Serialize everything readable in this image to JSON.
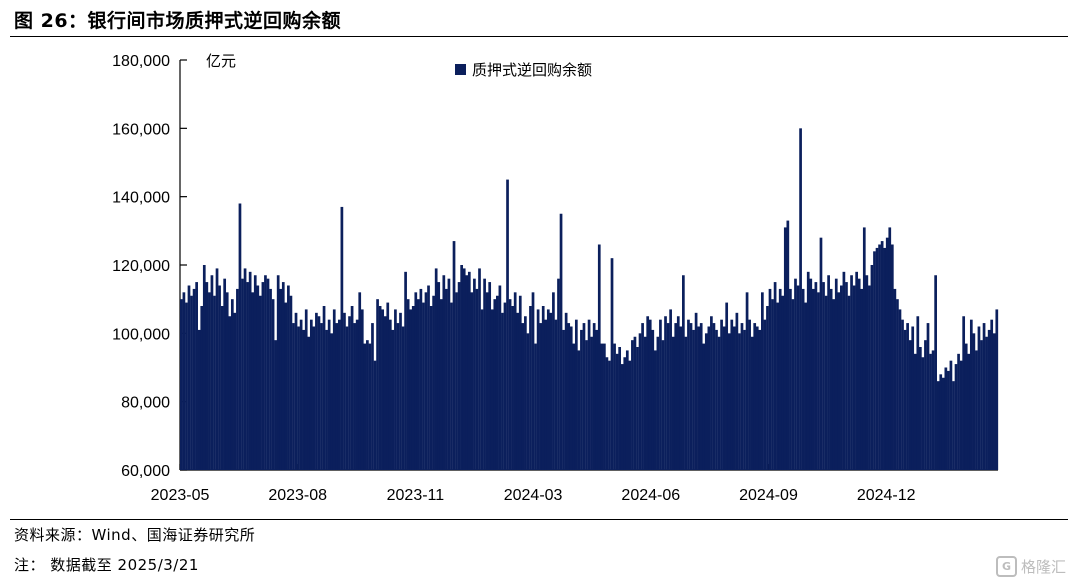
{
  "figure": {
    "title": "图 26：银行间市场质押式逆回购余额",
    "source": "资料来源：Wind、国海证券研究所",
    "note": "注：   数据截至 2025/3/21",
    "watermark": "格隆汇",
    "watermark_icon": "watermark-logo-icon"
  },
  "chart_data": {
    "type": "bar",
    "title": "",
    "xlabel": "",
    "ylabel": "亿元",
    "ylim": [
      60000,
      180000
    ],
    "yticks": [
      60000,
      80000,
      100000,
      120000,
      140000,
      160000,
      180000
    ],
    "ytick_labels": [
      "60,000",
      "80,000",
      "100,000",
      "120,000",
      "140,000",
      "160,000",
      "180,000"
    ],
    "xticks": [
      "2023-05",
      "2023-08",
      "2023-11",
      "2024-03",
      "2024-06",
      "2024-09",
      "2024-12"
    ],
    "legend_position": "top-center",
    "grid": false,
    "bar_color": "#0b1f5c",
    "series": [
      {
        "name": "质押式逆回购余额",
        "color": "#0b1f5c",
        "values": [
          110000,
          112000,
          109000,
          114000,
          111000,
          113000,
          115000,
          101000,
          108000,
          120000,
          115000,
          112000,
          117000,
          111000,
          119000,
          114000,
          108000,
          116000,
          112000,
          105000,
          110000,
          106000,
          113000,
          138000,
          116000,
          119000,
          115000,
          118000,
          112000,
          117000,
          114000,
          111000,
          115000,
          117000,
          116000,
          113000,
          110000,
          98000,
          117000,
          113000,
          115000,
          109000,
          114000,
          111000,
          103000,
          106000,
          102000,
          104000,
          101000,
          107000,
          99000,
          104000,
          102000,
          106000,
          105000,
          103000,
          108000,
          101000,
          104000,
          100000,
          107000,
          103000,
          104000,
          137000,
          106000,
          102000,
          105000,
          108000,
          103000,
          104000,
          112000,
          107000,
          97000,
          98000,
          97000,
          103000,
          92000,
          110000,
          108000,
          107000,
          105000,
          109000,
          104000,
          101000,
          107000,
          103000,
          106000,
          102000,
          118000,
          110000,
          107000,
          108000,
          112000,
          110000,
          113000,
          109000,
          112000,
          114000,
          108000,
          111000,
          119000,
          115000,
          110000,
          117000,
          113000,
          116000,
          109000,
          127000,
          112000,
          115000,
          120000,
          119000,
          117000,
          118000,
          112000,
          116000,
          113000,
          119000,
          107000,
          116000,
          112000,
          115000,
          107000,
          110000,
          111000,
          114000,
          106000,
          109000,
          145000,
          110000,
          108000,
          112000,
          106000,
          111000,
          103000,
          105000,
          100000,
          108000,
          112000,
          97000,
          107000,
          103000,
          108000,
          104000,
          107000,
          106000,
          112000,
          104000,
          116000,
          135000,
          101000,
          106000,
          103000,
          102000,
          97000,
          104000,
          95000,
          101000,
          103000,
          98000,
          104000,
          99000,
          103000,
          101000,
          126000,
          97000,
          97000,
          93000,
          92000,
          122000,
          97000,
          94000,
          96000,
          91000,
          93000,
          95000,
          92000,
          98000,
          99000,
          96000,
          100000,
          103000,
          99000,
          105000,
          104000,
          101000,
          95000,
          99000,
          104000,
          98000,
          105000,
          103000,
          107000,
          99000,
          103000,
          105000,
          102000,
          117000,
          99000,
          104000,
          103000,
          101000,
          106000,
          102000,
          103000,
          97000,
          100000,
          102000,
          105000,
          103000,
          101000,
          99000,
          104000,
          102000,
          109000,
          100000,
          104000,
          102000,
          106000,
          100000,
          103000,
          101000,
          112000,
          104000,
          99000,
          103000,
          102000,
          101000,
          112000,
          104000,
          108000,
          113000,
          110000,
          115000,
          109000,
          113000,
          111000,
          131000,
          133000,
          113000,
          110000,
          116000,
          114000,
          160000,
          113000,
          109000,
          118000,
          116000,
          113000,
          115000,
          112000,
          128000,
          115000,
          111000,
          117000,
          113000,
          110000,
          116000,
          112000,
          114000,
          118000,
          115000,
          111000,
          117000,
          114000,
          118000,
          116000,
          113000,
          131000,
          117000,
          114000,
          120000,
          124000,
          125000,
          126000,
          127000,
          125000,
          128000,
          131000,
          126000,
          113000,
          110000,
          107000,
          104000,
          101000,
          103000,
          98000,
          102000,
          94000,
          105000,
          96000,
          93000,
          98000,
          103000,
          94000,
          95000,
          117000,
          86000,
          88000,
          87000,
          90000,
          89000,
          92000,
          86000,
          91000,
          94000,
          92000,
          105000,
          97000,
          94000,
          104000,
          100000,
          95000,
          102000,
          98000,
          103000,
          99000,
          101000,
          104000,
          100000,
          107000
        ]
      }
    ]
  }
}
